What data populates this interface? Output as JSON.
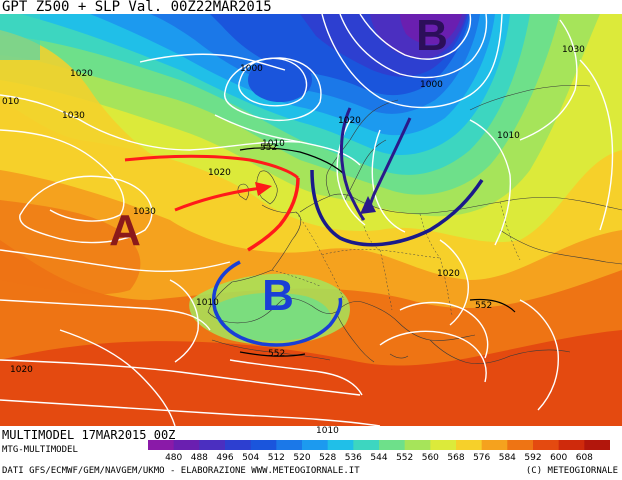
{
  "header": {
    "title": "GPT Z500 + SLP Val. 00Z22MAR2015"
  },
  "footer": {
    "run": "MULTIMODEL 17MAR2015 00Z",
    "model": "MTG-MULTIMODEL",
    "sources": "DATI GFS/ECMWF/GEM/NAVGEM/UKMO - ELABORAZIONE WWW.METEOGIORNALE.IT",
    "credit": "(C) METEOGIORNALE"
  },
  "colorbar": {
    "ticks": [
      "480",
      "488",
      "496",
      "504",
      "512",
      "520",
      "528",
      "536",
      "544",
      "552",
      "560",
      "568",
      "576",
      "584",
      "592",
      "600",
      "608"
    ],
    "colors": [
      "#8a1aa8",
      "#6a1fb0",
      "#4b2fc0",
      "#2d3fd0",
      "#1a55dc",
      "#1b78e8",
      "#1c9aef",
      "#20bfe8",
      "#3dd6c0",
      "#6ee08a",
      "#a6e45a",
      "#dcea3a",
      "#f6d02a",
      "#f5a21e",
      "#ee7414",
      "#e44a10",
      "#cf2a0c",
      "#b2160c"
    ]
  },
  "map": {
    "centers": [
      {
        "letter": "B",
        "color": "#2c0f5a"
      },
      {
        "letter": "A",
        "color": "#8b1a1a"
      },
      {
        "letter": "B",
        "color": "#1a3fd6"
      }
    ],
    "isobar_labels": [
      "1020",
      "1030",
      "010",
      "1000",
      "1000",
      "1030",
      "1020",
      "1010",
      "1010",
      "1020",
      "1030",
      "1010",
      "1020",
      "1020",
      "1010",
      "552",
      "552",
      "552"
    ]
  }
}
